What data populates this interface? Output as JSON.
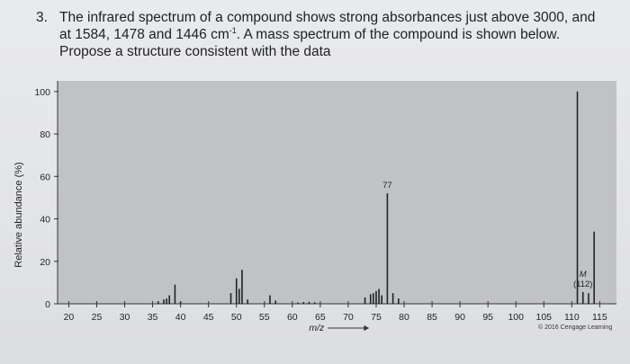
{
  "question": {
    "number": "3.",
    "text_part1": "The infrared spectrum of a compound shows strong absorbances just above 3000, and at 1584, 1478 and 1446 cm",
    "text_sup": "-1",
    "text_part2": ". A mass spectrum of the compound is shown below. Propose a structure consistent with the data"
  },
  "credit": "© 2016 Cengage Learning",
  "colors": {
    "plot_bg": "#c0c2c6",
    "bar": "#202226",
    "text": "#1e2024"
  },
  "chart_data": {
    "type": "bar",
    "ylabel": "Relative abundance (%)",
    "xlabel": "m/z",
    "xlim": [
      18,
      118
    ],
    "ylim": [
      0,
      105
    ],
    "x_ticks": [
      20,
      25,
      30,
      35,
      40,
      45,
      50,
      55,
      60,
      65,
      70,
      75,
      80,
      85,
      90,
      95,
      100,
      105,
      110,
      115
    ],
    "y_ticks": [
      0,
      20,
      40,
      60,
      80,
      100
    ],
    "grid": false,
    "x": [
      36,
      37,
      37.5,
      38,
      39,
      40,
      49,
      50,
      50.5,
      51,
      52,
      56,
      57,
      61,
      62,
      63,
      64,
      73,
      74,
      74.5,
      75,
      75.5,
      76,
      77,
      78,
      79,
      111,
      112,
      113,
      114
    ],
    "values": [
      1.2,
      2,
      2.5,
      4,
      9,
      1,
      5,
      12,
      7,
      16,
      2,
      4,
      1.5,
      0.6,
      0.8,
      0.9,
      0.7,
      3,
      4.5,
      5,
      6,
      7,
      4,
      52,
      5,
      2.5,
      100,
      5.5,
      5,
      34
    ],
    "annotations": [
      {
        "x": 77,
        "text": "77"
      },
      {
        "x": 112,
        "text": "M\n(112)"
      }
    ]
  }
}
